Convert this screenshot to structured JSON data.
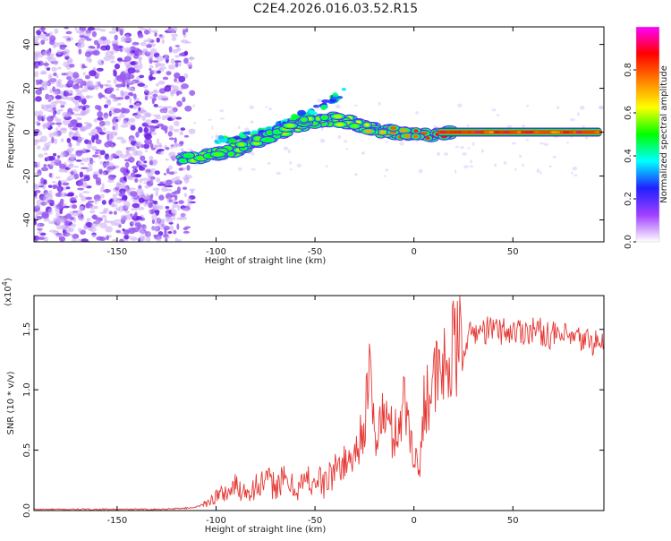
{
  "title": "C2E4.2026.016.03.52.R15",
  "colors": {
    "background": "#ffffff",
    "axis": "#000000",
    "snr_line": "#e53935",
    "noise_purple": "#6a1fe8",
    "noise_light": "#c9a8f5"
  },
  "chart_data": [
    {
      "type": "heatmap",
      "title": "",
      "xlabel": "Height of straight line (km)",
      "ylabel": "Frequency (Hz)",
      "xlim": [
        -192,
        96
      ],
      "ylim": [
        -50,
        48
      ],
      "x_ticks": [
        -150,
        -100,
        -50,
        0,
        50
      ],
      "y_ticks": [
        -40,
        -20,
        0,
        20,
        40
      ],
      "colorbar": {
        "label": "Normalized spectral amplitude",
        "range": [
          0,
          1
        ],
        "ticks": [
          0.0,
          0.2,
          0.4,
          0.6,
          0.8
        ],
        "tick_labels": [
          "0.0",
          "0.2",
          "0.4",
          "0.6",
          "0.8"
        ],
        "colormap": [
          "#ffffff",
          "#a040ff",
          "#2020ff",
          "#00ffff",
          "#00ff00",
          "#ffff00",
          "#ff8000",
          "#ff0000",
          "#ff00ff"
        ]
      },
      "features": {
        "noise_region_x": [
          -192,
          -112
        ],
        "main_trace": {
          "x": [
            -117,
            -110,
            -100,
            -90,
            -80,
            -70,
            -60,
            -50,
            -40,
            -30,
            -20,
            -10,
            0,
            10,
            20,
            40,
            60,
            80,
            95
          ],
          "freq": [
            -12,
            -12,
            -10,
            -8,
            -5,
            -1,
            3,
            5,
            6,
            4,
            1,
            0,
            -1,
            -1,
            0,
            0,
            0,
            0,
            0
          ],
          "amplitude": [
            0.45,
            0.5,
            0.45,
            0.5,
            0.5,
            0.45,
            0.5,
            0.5,
            0.5,
            0.55,
            0.65,
            0.7,
            0.75,
            0.8,
            0.85,
            0.85,
            0.85,
            0.85,
            0.85
          ]
        },
        "upper_branch": {
          "x": [
            -100,
            -90,
            -80,
            -70,
            -60,
            -50,
            -42,
            -35
          ],
          "freq": [
            -4,
            -3,
            -1,
            2,
            6,
            10,
            14,
            19
          ]
        }
      }
    },
    {
      "type": "line",
      "title": "",
      "xlabel": "Height of straight line (km)",
      "ylabel": "SNR (10 * v/v)",
      "scale_label": "(x10",
      "scale_exponent": "4",
      "xlim": [
        -192,
        96
      ],
      "ylim": [
        0,
        1.78
      ],
      "x_ticks": [
        -150,
        -100,
        -50,
        0,
        50
      ],
      "y_ticks": [
        0.0,
        0.5,
        1.0,
        1.5
      ],
      "y_tick_labels": [
        "0.0",
        "0.5",
        "1.0",
        "1.5"
      ],
      "series": [
        {
          "name": "SNR",
          "x": [
            -192,
            -170,
            -150,
            -130,
            -115,
            -110,
            -105,
            -100,
            -95,
            -90,
            -85,
            -80,
            -75,
            -70,
            -65,
            -60,
            -55,
            -50,
            -45,
            -40,
            -35,
            -30,
            -25,
            -22,
            -20,
            -15,
            -10,
            -5,
            0,
            3,
            5,
            10,
            15,
            20,
            25,
            30,
            40,
            50,
            60,
            70,
            80,
            90,
            96
          ],
          "values": [
            0.01,
            0.01,
            0.01,
            0.01,
            0.02,
            0.03,
            0.06,
            0.12,
            0.15,
            0.2,
            0.16,
            0.2,
            0.23,
            0.22,
            0.24,
            0.18,
            0.24,
            0.26,
            0.22,
            0.35,
            0.4,
            0.45,
            0.75,
            1.1,
            0.6,
            0.8,
            0.6,
            0.9,
            0.5,
            0.3,
            0.95,
            1.05,
            1.15,
            1.3,
            1.38,
            1.48,
            1.5,
            1.48,
            1.5,
            1.45,
            1.42,
            1.4,
            1.38
          ]
        }
      ]
    }
  ]
}
